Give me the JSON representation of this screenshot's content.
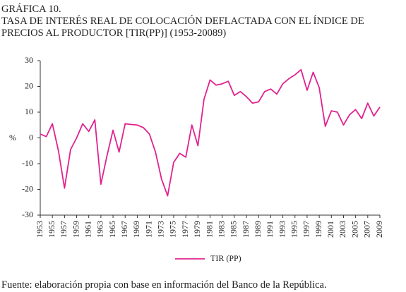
{
  "chart_data": {
    "type": "line",
    "title_lines": [
      "GRÁFICA 10.",
      "TASA DE INTERÉS REAL DE COLOCACIÓN DEFLACTADA CON EL ÍNDICE DE",
      "PRECIOS AL PRODUCTOR [TIR(PP)] (1953-20089)"
    ],
    "ylabel": "%",
    "source": "Fuente: elaboración propia con base en información del Banco de la República.",
    "x": [
      1953,
      1954,
      1955,
      1956,
      1957,
      1958,
      1959,
      1960,
      1961,
      1962,
      1963,
      1964,
      1965,
      1966,
      1967,
      1968,
      1969,
      1970,
      1971,
      1972,
      1973,
      1974,
      1975,
      1976,
      1977,
      1978,
      1979,
      1980,
      1981,
      1982,
      1983,
      1984,
      1985,
      1986,
      1987,
      1988,
      1989,
      1990,
      1991,
      1992,
      1993,
      1994,
      1995,
      1996,
      1997,
      1998,
      1999,
      2000,
      2001,
      2002,
      2003,
      2004,
      2005,
      2006,
      2007,
      2008,
      2009
    ],
    "series": [
      {
        "name": "TIR (PP)",
        "color": "#e0228f",
        "values": [
          1.5,
          0.5,
          5.5,
          -5,
          -19.5,
          -4.5,
          0,
          5.5,
          2.5,
          7,
          -18,
          -7,
          3,
          -5.5,
          5.5,
          5.2,
          5,
          4,
          1.5,
          -5.5,
          -16,
          -22.5,
          -9.5,
          -6,
          -7.5,
          5,
          -3,
          15,
          22.5,
          20.5,
          21,
          22,
          16.5,
          18,
          16,
          13.5,
          14,
          18,
          19,
          17,
          21,
          23,
          24.5,
          26.5,
          18.5,
          25.5,
          19.5,
          4.5,
          10.5,
          10,
          5,
          9,
          11,
          7.5,
          13.5,
          8.5,
          12
        ]
      }
    ],
    "xlim": [
      1953,
      2009
    ],
    "xticks": [
      1953,
      1955,
      1957,
      1959,
      1961,
      1963,
      1965,
      1967,
      1969,
      1971,
      1973,
      1975,
      1977,
      1979,
      1981,
      1983,
      1985,
      1987,
      1989,
      1991,
      1993,
      1995,
      1997,
      1999,
      2001,
      2003,
      2005,
      2007,
      2009
    ],
    "ylim": [
      -30,
      30
    ],
    "yticks": [
      30,
      20,
      10,
      0,
      -10,
      -20,
      -30
    ],
    "grid": false
  }
}
